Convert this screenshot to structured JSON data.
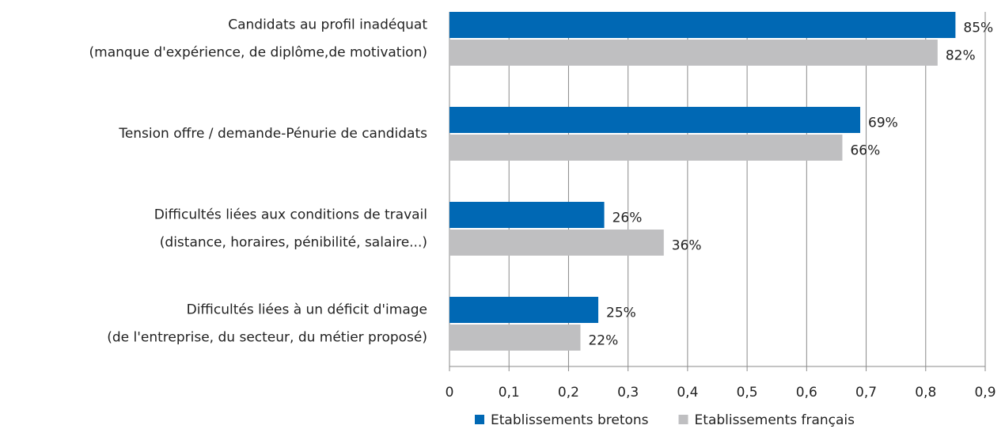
{
  "chart_data": {
    "type": "hbar",
    "categories": [
      [
        "Candidats au profil inadéquat",
        "(manque d'expérience, de diplôme,de motivation)"
      ],
      [
        "Tension offre / demande-Pénurie de candidats"
      ],
      [
        "Difficultés liées aux conditions de travail",
        "(distance, horaires, pénibilité, salaire...)"
      ],
      [
        "Difficultés liées à un déficit d'image",
        "(de l'entreprise, du secteur, du métier proposé)"
      ]
    ],
    "series": [
      {
        "name": "Etablissements bretons",
        "color": "#0068b4",
        "values": [
          0.85,
          0.69,
          0.26,
          0.25
        ],
        "value_labels": [
          "85%",
          "69%",
          "26%",
          "25%"
        ]
      },
      {
        "name": "Etablissements français",
        "color": "#bfbfc1",
        "values": [
          0.82,
          0.66,
          0.36,
          0.22
        ],
        "value_labels": [
          "82%",
          "66%",
          "36%",
          "22%"
        ]
      }
    ],
    "xlim": [
      0,
      0.9
    ],
    "xticks": [
      0,
      {
        "value": 0.1,
        "label": "0,1"
      },
      {
        "value": 0.2,
        "label": "0,2"
      },
      {
        "value": 0.3,
        "label": "0,3"
      },
      {
        "value": 0.4,
        "label": "0,4"
      },
      {
        "value": 0.5,
        "label": "0,5"
      },
      {
        "value": 0.6,
        "label": "0,6"
      },
      {
        "value": 0.7,
        "label": "0,7"
      },
      {
        "value": 0.8,
        "label": "0,8"
      },
      {
        "value": 0.9,
        "label": "0,9"
      }
    ],
    "grid": true,
    "legend": "bottom"
  }
}
